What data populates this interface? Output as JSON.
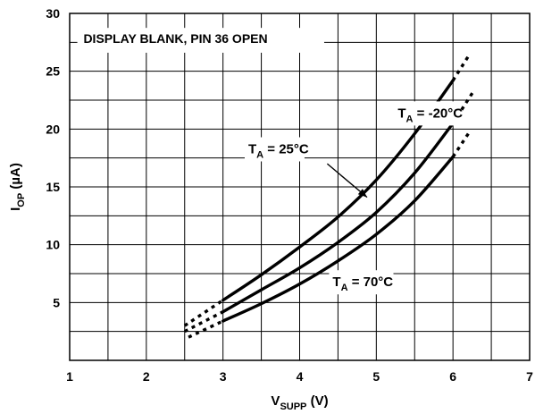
{
  "chart_data": {
    "type": "line",
    "note_text": "DISPLAY BLANK, PIN 36 OPEN",
    "xlabel": {
      "main": "V",
      "sub": "SUPP",
      "tail": " (V)"
    },
    "ylabel": {
      "main": "I",
      "sub": "OP",
      "tail": " (µA)"
    },
    "xlim": [
      1,
      7
    ],
    "ylim": [
      0,
      30
    ],
    "x_ticks": [
      1,
      2,
      3,
      4,
      5,
      6,
      7
    ],
    "y_ticks": [
      5,
      10,
      15,
      20,
      25,
      30
    ],
    "grid": true,
    "series": [
      {
        "name": {
          "main": "T",
          "sub": "A",
          "tail": " = -20°C"
        },
        "solid": {
          "x": [
            3.0,
            3.5,
            4.0,
            4.5,
            5.0,
            5.5,
            6.0
          ],
          "y": [
            5.2,
            7.4,
            9.8,
            12.4,
            15.6,
            19.6,
            24.2
          ]
        },
        "dotted_low": {
          "x": [
            2.5,
            3.0
          ],
          "y": [
            3.0,
            5.2
          ]
        },
        "dotted_high": {
          "x": [
            6.0,
            6.22
          ],
          "y": [
            24.2,
            26.5
          ]
        }
      },
      {
        "name": {
          "main": "T",
          "sub": "A",
          "tail": " = 25°C"
        },
        "solid": {
          "x": [
            3.0,
            3.5,
            4.0,
            4.5,
            5.0,
            5.5,
            6.0
          ],
          "y": [
            4.2,
            6.1,
            8.0,
            10.2,
            12.8,
            16.2,
            20.5
          ]
        },
        "dotted_low": {
          "x": [
            2.5,
            3.0
          ],
          "y": [
            2.5,
            4.2
          ]
        },
        "dotted_high": {
          "x": [
            6.0,
            6.28
          ],
          "y": [
            20.5,
            23.4
          ]
        }
      },
      {
        "name": {
          "main": "T",
          "sub": "A",
          "tail": " = 70°C"
        },
        "solid": {
          "x": [
            3.0,
            3.5,
            4.0,
            4.5,
            5.0,
            5.5,
            6.0
          ],
          "y": [
            3.4,
            4.9,
            6.6,
            8.6,
            10.9,
            13.8,
            17.6
          ]
        },
        "dotted_low": {
          "x": [
            2.55,
            3.0
          ],
          "y": [
            2.0,
            3.4
          ]
        },
        "dotted_high": {
          "x": [
            6.0,
            6.22
          ],
          "y": [
            17.6,
            19.8
          ]
        }
      }
    ]
  }
}
